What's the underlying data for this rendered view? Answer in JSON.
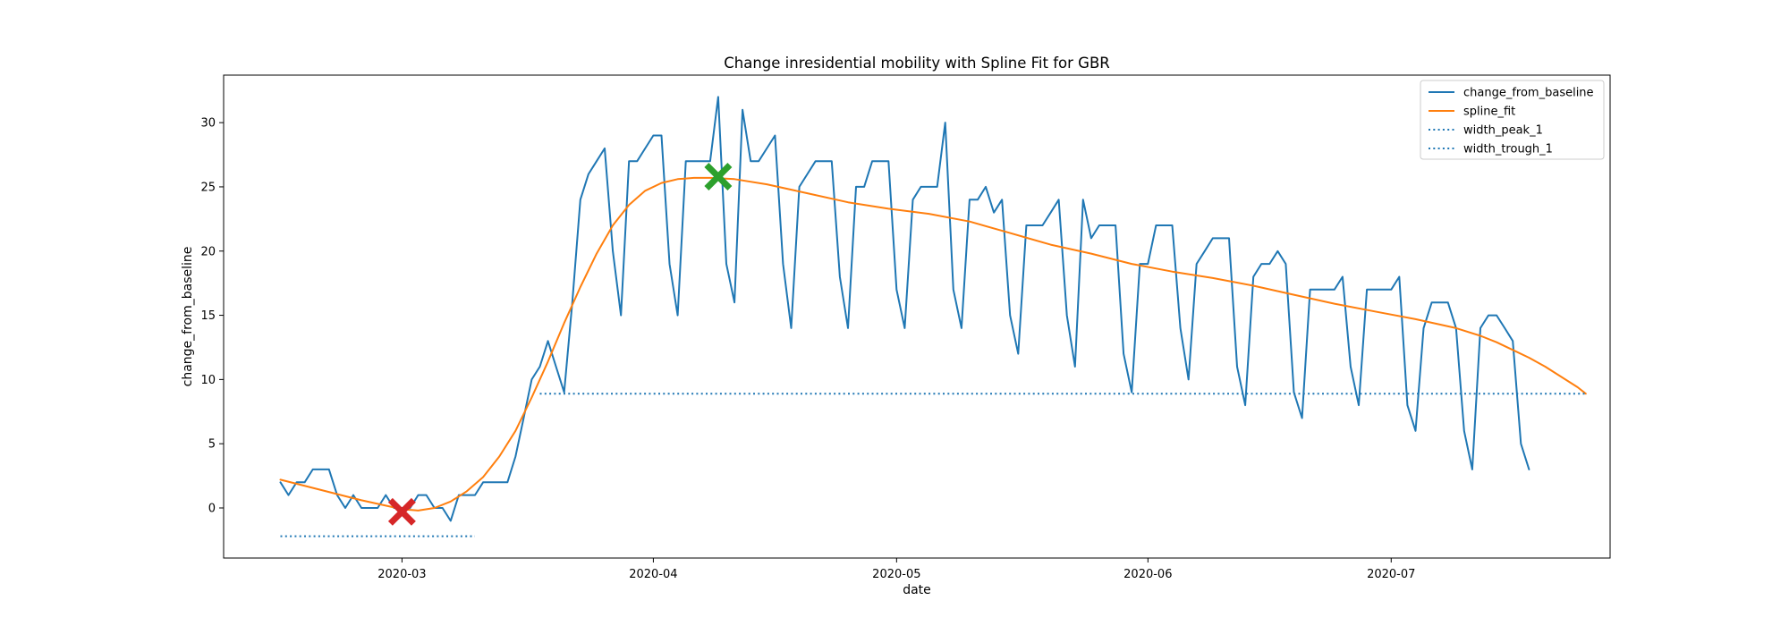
{
  "chart_data": {
    "type": "line",
    "title": "Change inresidential mobility with Spline Fit for GBR",
    "xlabel": "date",
    "ylabel": "change_from_baseline",
    "x_start_date": "2020-02-15",
    "xlim": [
      "2020-02-08",
      "2020-07-28"
    ],
    "ylim": [
      -3.9,
      33.7
    ],
    "grid": false,
    "legend_position": "upper right",
    "x_ticks": [
      {
        "date": "2020-03-01",
        "label": "2020-03"
      },
      {
        "date": "2020-04-01",
        "label": "2020-04"
      },
      {
        "date": "2020-05-01",
        "label": "2020-05"
      },
      {
        "date": "2020-06-01",
        "label": "2020-06"
      },
      {
        "date": "2020-07-01",
        "label": "2020-07"
      }
    ],
    "y_ticks": [
      0,
      5,
      10,
      15,
      20,
      25,
      30
    ],
    "series": [
      {
        "name": "change_from_baseline",
        "color": "#1f77b4",
        "style": "solid",
        "values": [
          2,
          1,
          2,
          2,
          3,
          3,
          3,
          1,
          0,
          1,
          0,
          0,
          0,
          1,
          0,
          0,
          0,
          1,
          1,
          0,
          0,
          -1,
          1,
          1,
          1,
          2,
          2,
          2,
          2,
          4,
          7,
          10,
          11,
          13,
          11,
          9,
          16,
          24,
          26,
          27,
          28,
          20,
          15,
          27,
          27,
          28,
          29,
          29,
          19,
          15,
          27,
          27,
          27,
          27,
          32,
          19,
          16,
          31,
          27,
          27,
          28,
          29,
          19,
          14,
          25,
          26,
          27,
          27,
          27,
          18,
          14,
          25,
          25,
          27,
          27,
          27,
          17,
          14,
          24,
          25,
          25,
          25,
          30,
          17,
          14,
          24,
          24,
          25,
          23,
          24,
          15,
          12,
          22,
          22,
          22,
          23,
          24,
          15,
          11,
          24,
          21,
          22,
          22,
          22,
          12,
          9,
          19,
          19,
          22,
          22,
          22,
          14,
          10,
          19,
          20,
          21,
          21,
          21,
          11,
          8,
          18,
          19,
          19,
          20,
          19,
          9,
          7,
          17,
          17,
          17,
          17,
          18,
          11,
          8,
          17,
          17,
          17,
          17,
          18,
          8,
          6,
          14,
          16,
          16,
          16,
          14,
          6,
          3,
          14,
          15,
          15,
          14,
          13,
          5,
          3
        ]
      },
      {
        "name": "spline_fit",
        "color": "#ff7f0e",
        "style": "solid",
        "points": [
          [
            0,
            2.2
          ],
          [
            5,
            1.4
          ],
          [
            10,
            0.6
          ],
          [
            15,
            -0.1
          ],
          [
            17,
            -0.2
          ],
          [
            19,
            0.0
          ],
          [
            21,
            0.5
          ],
          [
            23,
            1.3
          ],
          [
            25,
            2.4
          ],
          [
            27,
            4.0
          ],
          [
            29,
            6.0
          ],
          [
            31,
            8.6
          ],
          [
            33,
            11.4
          ],
          [
            35,
            14.4
          ],
          [
            37,
            17.2
          ],
          [
            39,
            19.8
          ],
          [
            41,
            22.0
          ],
          [
            43,
            23.6
          ],
          [
            45,
            24.7
          ],
          [
            47,
            25.3
          ],
          [
            49,
            25.6
          ],
          [
            51,
            25.7
          ],
          [
            53,
            25.7
          ],
          [
            56,
            25.6
          ],
          [
            60,
            25.2
          ],
          [
            65,
            24.5
          ],
          [
            70,
            23.8
          ],
          [
            75,
            23.3
          ],
          [
            80,
            22.9
          ],
          [
            85,
            22.3
          ],
          [
            90,
            21.4
          ],
          [
            95,
            20.5
          ],
          [
            100,
            19.8
          ],
          [
            105,
            19.0
          ],
          [
            110,
            18.4
          ],
          [
            115,
            17.9
          ],
          [
            120,
            17.3
          ],
          [
            125,
            16.6
          ],
          [
            130,
            15.9
          ],
          [
            135,
            15.3
          ],
          [
            140,
            14.7
          ],
          [
            145,
            14.0
          ],
          [
            148,
            13.4
          ],
          [
            150,
            12.9
          ],
          [
            152,
            12.3
          ],
          [
            154,
            11.7
          ],
          [
            156,
            11.0
          ],
          [
            158,
            10.2
          ],
          [
            160,
            9.4
          ],
          [
            161,
            8.9
          ]
        ]
      },
      {
        "name": "width_peak_1",
        "color": "#1f77b4",
        "style": "dotted",
        "x_range": [
          32,
          161
        ],
        "y": 8.9
      },
      {
        "name": "width_trough_1",
        "color": "#1f77b4",
        "style": "dotted",
        "x_range": [
          0,
          24
        ],
        "y": -2.2
      }
    ],
    "markers": [
      {
        "name": "trough",
        "day": 15,
        "value": -0.3,
        "color": "#d62728",
        "symbol": "X"
      },
      {
        "name": "peak",
        "day": 54,
        "value": 25.8,
        "color": "#2ca02c",
        "symbol": "X"
      }
    ]
  }
}
